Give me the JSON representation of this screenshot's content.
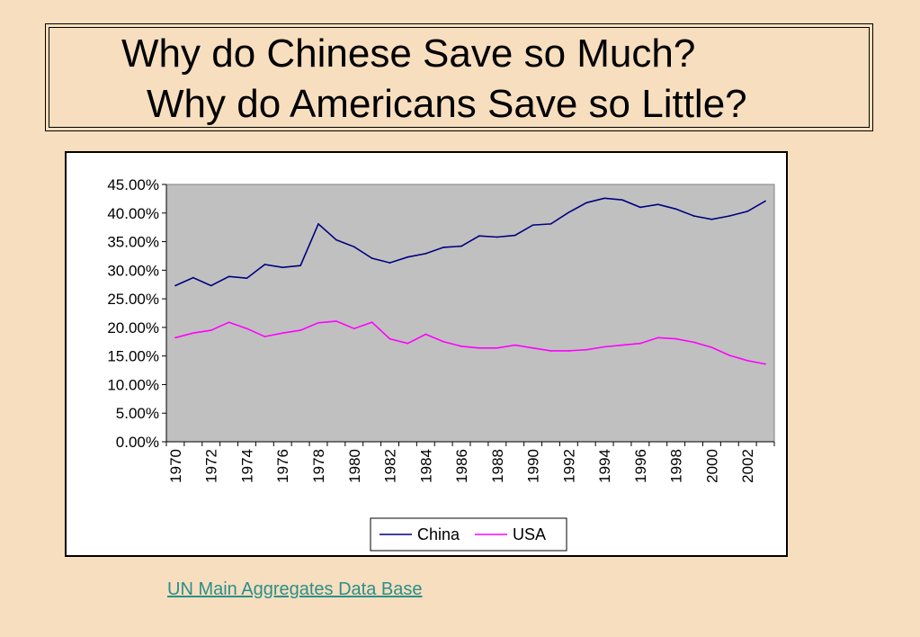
{
  "title": {
    "line1": "Why do Chinese Save so Much?",
    "line2": "Why do Americans Save so Little?"
  },
  "source_link": "UN Main Aggregates Data Base",
  "colors": {
    "background": "#F7DEBE",
    "plot_area": "#C0C0C0",
    "china": "#000080",
    "usa": "#FF00FF",
    "link": "#2B8F8A"
  },
  "chart_data": {
    "type": "line",
    "title": "",
    "xlabel": "",
    "ylabel": "",
    "x": [
      1970,
      1971,
      1972,
      1973,
      1974,
      1975,
      1976,
      1977,
      1978,
      1979,
      1980,
      1981,
      1982,
      1983,
      1984,
      1985,
      1986,
      1987,
      1988,
      1989,
      1990,
      1991,
      1992,
      1993,
      1994,
      1995,
      1996,
      1997,
      1998,
      1999,
      2000,
      2001,
      2002,
      2003
    ],
    "x_tick_labels": [
      "1970",
      "1972",
      "1974",
      "1976",
      "1978",
      "1980",
      "1982",
      "1984",
      "1986",
      "1988",
      "1990",
      "1992",
      "1994",
      "1996",
      "1998",
      "2000",
      "2002"
    ],
    "y_tick_labels": [
      "0.00%",
      "5.00%",
      "10.00%",
      "15.00%",
      "20.00%",
      "25.00%",
      "30.00%",
      "35.00%",
      "40.00%",
      "45.00%"
    ],
    "ylim": [
      0,
      45
    ],
    "y_unit": "%",
    "grid": false,
    "legend_position": "bottom",
    "series": [
      {
        "name": "China",
        "color": "#000080",
        "values": [
          27.3,
          28.7,
          27.3,
          28.9,
          28.6,
          31.0,
          30.5,
          30.8,
          38.1,
          35.3,
          34.1,
          32.1,
          31.3,
          32.3,
          32.9,
          34.0,
          34.2,
          36.0,
          35.8,
          36.1,
          37.9,
          38.1,
          40.1,
          41.8,
          42.6,
          42.3,
          41.0,
          41.5,
          40.7,
          39.5,
          38.9,
          39.5,
          40.3,
          42.1
        ]
      },
      {
        "name": "USA",
        "color": "#FF00FF",
        "values": [
          18.2,
          19.0,
          19.5,
          20.9,
          19.8,
          18.4,
          19.0,
          19.5,
          20.8,
          21.1,
          19.8,
          20.9,
          18.0,
          17.2,
          18.8,
          17.5,
          16.7,
          16.4,
          16.4,
          16.9,
          16.4,
          15.9,
          15.9,
          16.1,
          16.6,
          16.9,
          17.2,
          18.2,
          18.0,
          17.4,
          16.5,
          15.1,
          14.2,
          13.6
        ]
      }
    ]
  }
}
